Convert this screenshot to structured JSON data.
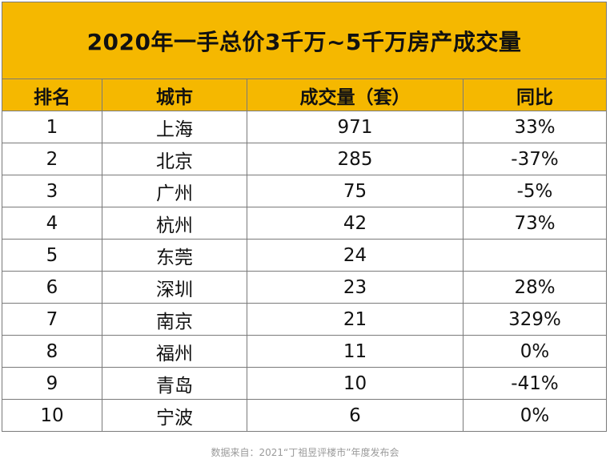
{
  "table": {
    "title": "2020年一手总价3千万~5千万房产成交量",
    "headers": [
      "排名",
      "城市",
      "成交量（套）",
      "同比"
    ],
    "rows": [
      {
        "rank": "1",
        "city": "上海",
        "volume": "971",
        "yoy": "33%"
      },
      {
        "rank": "2",
        "city": "北京",
        "volume": "285",
        "yoy": "-37%"
      },
      {
        "rank": "3",
        "city": "广州",
        "volume": "75",
        "yoy": "-5%"
      },
      {
        "rank": "4",
        "city": "杭州",
        "volume": "42",
        "yoy": "73%"
      },
      {
        "rank": "5",
        "city": "东莞",
        "volume": "24",
        "yoy": ""
      },
      {
        "rank": "6",
        "city": "深圳",
        "volume": "23",
        "yoy": "28%"
      },
      {
        "rank": "7",
        "city": "南京",
        "volume": "21",
        "yoy": "329%"
      },
      {
        "rank": "8",
        "city": "福州",
        "volume": "11",
        "yoy": "0%"
      },
      {
        "rank": "9",
        "city": "青岛",
        "volume": "10",
        "yoy": "-41%"
      },
      {
        "rank": "10",
        "city": "宁波",
        "volume": "6",
        "yoy": "0%"
      }
    ]
  },
  "source_note": "数据来自：2021“丁祖昱评楼市”年度发布会",
  "colors": {
    "header_bg": "#f5b800",
    "border": "#7a7a7a",
    "source_text": "#9a9a9a"
  }
}
